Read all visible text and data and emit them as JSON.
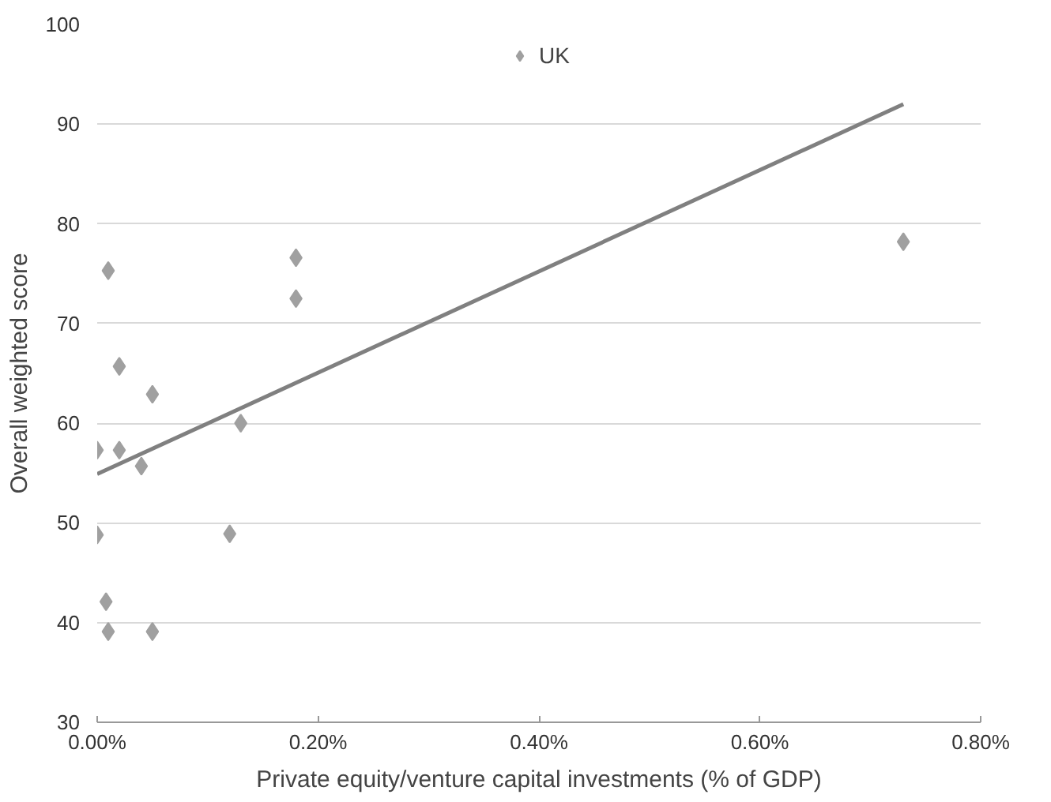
{
  "chart_data": {
    "type": "scatter",
    "xlabel": "Private equity/venture capital investments (% of GDP)",
    "ylabel": "Overall weighted score",
    "xlim": [
      0,
      0.8
    ],
    "ylim": [
      30,
      100
    ],
    "xticks": [
      {
        "value": 0,
        "label": "0.00%"
      },
      {
        "value": 0.2,
        "label": "0.20%"
      },
      {
        "value": 0.4,
        "label": "0.40%"
      },
      {
        "value": 0.6,
        "label": "0.60%"
      },
      {
        "value": 0.8,
        "label": "0.80%"
      }
    ],
    "yticks": [
      30,
      40,
      50,
      60,
      70,
      80,
      90,
      100
    ],
    "grid": "y",
    "legend": "top",
    "marker": "diamond",
    "series": [
      {
        "name": "UK",
        "color": "#a0a0a0",
        "x": [
          0.01,
          0.18,
          0.18,
          0.02,
          0.05,
          0.13,
          0.0,
          0.02,
          0.04,
          0.0,
          0.12,
          0.008,
          0.01,
          0.05,
          0.73
        ],
        "values": [
          75.3,
          76.6,
          72.5,
          65.7,
          62.9,
          60.0,
          57.3,
          57.3,
          55.7,
          48.8,
          48.9,
          42.1,
          39.1,
          39.1,
          78.2
        ]
      },
      {
        "type": "line",
        "marker": "none",
        "color": "#808080",
        "x": [
          0.0,
          0.73
        ],
        "values": [
          54.9,
          92.0
        ]
      }
    ]
  }
}
